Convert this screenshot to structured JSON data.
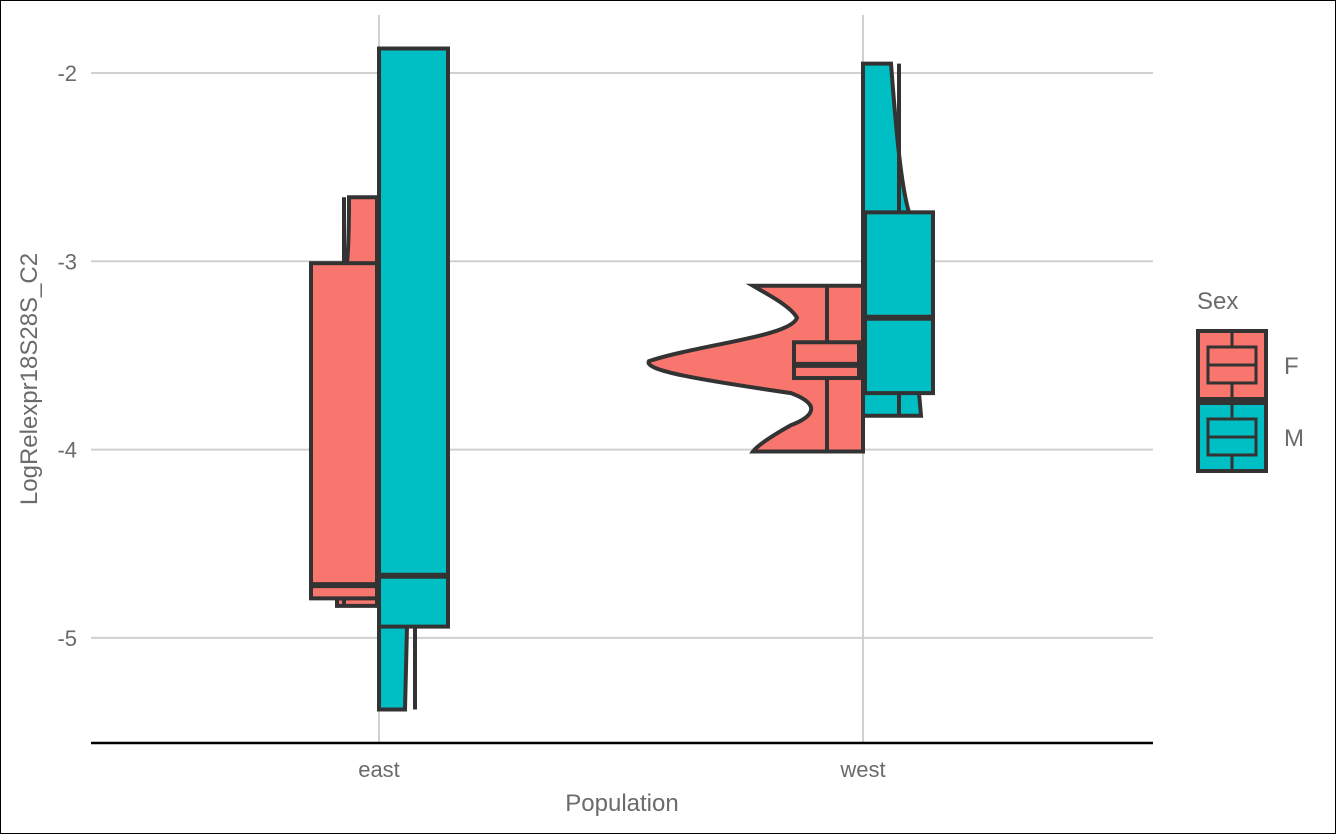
{
  "chart_data": {
    "type": "violin-boxplot",
    "xlabel": "Population",
    "ylabel": "LogRelexpr18S28S_C2",
    "categories": [
      "east",
      "west"
    ],
    "ylim": [
      -5.55,
      -1.7
    ],
    "yticks": [
      -2,
      -3,
      -4,
      -5
    ],
    "ytick_labels": [
      "-2",
      "-3",
      "-4",
      "-5"
    ],
    "grid": true,
    "legend": {
      "title": "Sex",
      "position": "right",
      "entries": [
        {
          "label": "F",
          "color": "#F8766D"
        },
        {
          "label": "M",
          "color": "#00BFC4"
        }
      ]
    },
    "series": [
      {
        "name": "F",
        "color": "#F8766D",
        "boxes": [
          {
            "category": "east",
            "min": -4.83,
            "q1": -4.79,
            "median": -4.72,
            "q3": -3.01,
            "max": -2.66
          },
          {
            "category": "west",
            "min": -4.01,
            "q1": -3.62,
            "median": -3.55,
            "q3": -3.43,
            "max": -3.13
          }
        ]
      },
      {
        "name": "M",
        "color": "#00BFC4",
        "boxes": [
          {
            "category": "east",
            "min": -5.38,
            "q1": -4.94,
            "median": -4.67,
            "q3": -1.87,
            "max": -1.87
          },
          {
            "category": "west",
            "min": -3.82,
            "q1": -3.7,
            "median": -3.3,
            "q3": -2.74,
            "max": -1.95
          }
        ]
      }
    ]
  }
}
